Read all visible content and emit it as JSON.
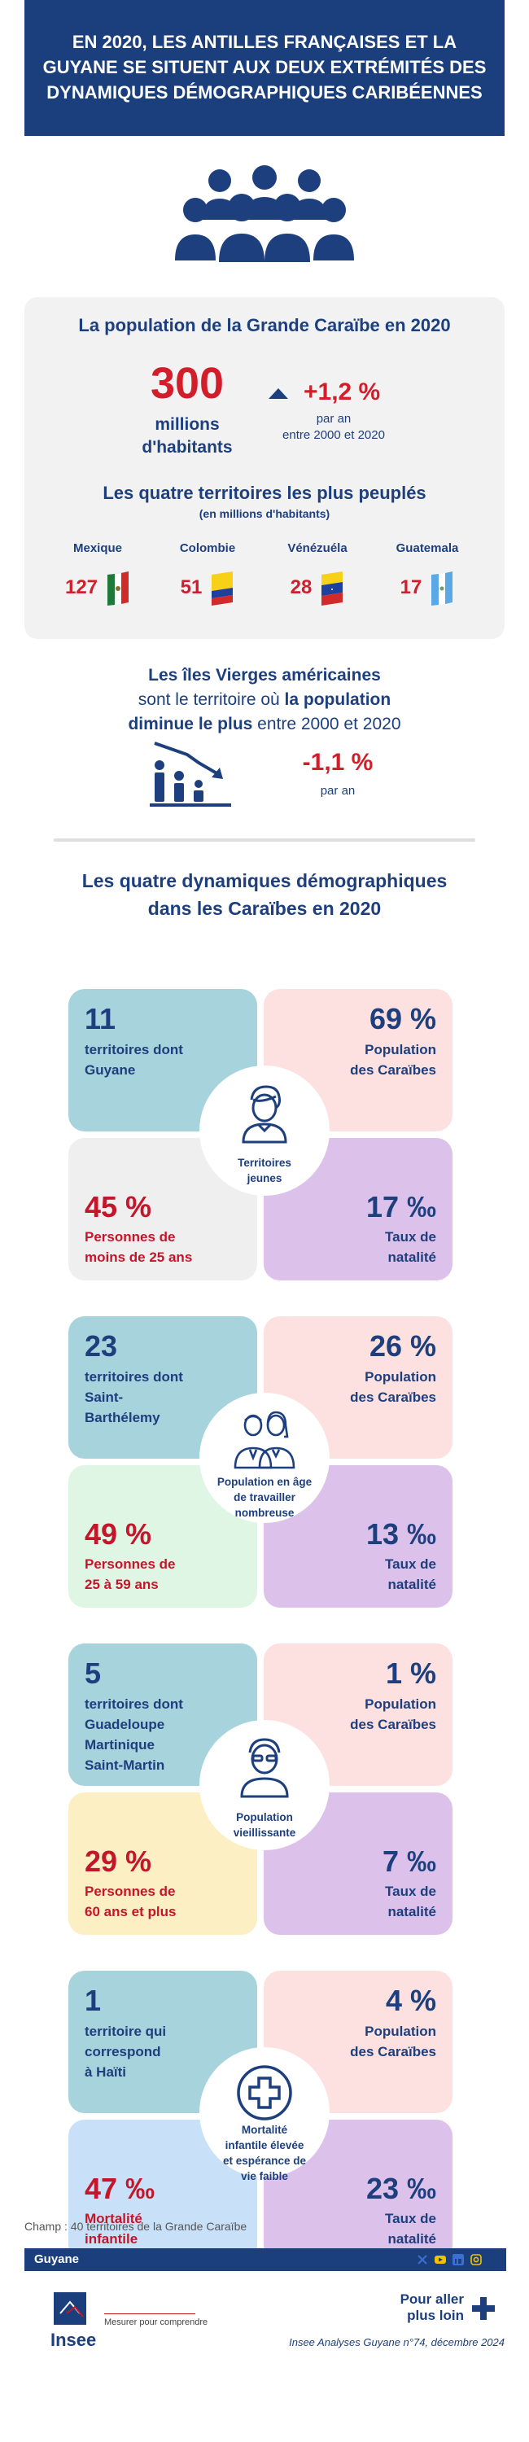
{
  "header": {
    "line1": "EN 2020, LES ANTILLES FRANÇAISES ET LA",
    "line2": "GUYANE SE SITUENT AUX DEUX EXTRÉMITÉS DES",
    "line3": "DYNAMIQUES DÉMOGRAPHIQUES CARIBÉENNES"
  },
  "population": {
    "title": "La population de la Grande Caraïbe en 2020",
    "value": "300",
    "unit_line1": "millions",
    "unit_line2": "d'habitants",
    "growth": "+1,2 %",
    "growth_line1": "par an",
    "growth_line2": "entre 2000 et 2020",
    "top4_title": "Les quatre territoires les plus peuplés",
    "top4_sub": "(en millions d'habitants)",
    "countries": [
      {
        "name": "Mexique",
        "value": "127",
        "flag": "mexico-flag"
      },
      {
        "name": "Colombie",
        "value": "51",
        "flag": "colombia-flag"
      },
      {
        "name": "Vénézuéla",
        "value": "28",
        "flag": "venezuela-flag"
      },
      {
        "name": "Guatemala",
        "value": "17",
        "flag": "guatemala-flag"
      }
    ]
  },
  "virgin_islands": {
    "line1": "Les îles Vierges américaines",
    "line2_pre": "sont le territoire où ",
    "line2_bold": "la population",
    "line3_bold": "diminue le plus",
    "line3_post": " entre 2000 et 2020",
    "value": "-1,1 %",
    "sub": "par an"
  },
  "dynamics_title_line1": "Les quatre dynamiques démographiques",
  "dynamics_title_line2": "dans les Caraïbes en 2020",
  "blocks": [
    {
      "center": [
        "Territoires",
        "jeunes"
      ],
      "center_icon": "young-person-icon",
      "tl_num": "11",
      "tl_label": [
        "territoires dont",
        "Guyane"
      ],
      "tr_num": "69 %",
      "tr_label": [
        "Population",
        "des Caraïbes"
      ],
      "bl_num": "45 %",
      "bl_label": [
        "Personnes de",
        "moins de 25 ans"
      ],
      "br_num": "17 ‰",
      "br_label": [
        "Taux de",
        "natalité"
      ],
      "colors": {
        "tl": "#a6d3dc",
        "tr": "#fde1e0",
        "bl": "#efefef",
        "br": "#dcc1ea"
      }
    },
    {
      "center": [
        "Population en âge",
        "de travailler",
        "nombreuse"
      ],
      "center_icon": "working-adults-icon",
      "tl_num": "23",
      "tl_label": [
        "territoires dont",
        "Saint-",
        "Barthélemy"
      ],
      "tr_num": "26 %",
      "tr_label": [
        "Population",
        "des Caraïbes"
      ],
      "bl_num": "49 %",
      "bl_label": [
        "Personnes de",
        "25 à 59 ans"
      ],
      "br_num": "13 ‰",
      "br_label": [
        "Taux de",
        "natalité"
      ],
      "colors": {
        "tl": "#a6d3dc",
        "tr": "#fde1e0",
        "bl": "#dff6e5",
        "br": "#dcc1ea"
      }
    },
    {
      "center": [
        "Population",
        "vieillissante"
      ],
      "center_icon": "elderly-person-icon",
      "tl_num": "5",
      "tl_label": [
        "territoires dont",
        "Guadeloupe",
        "Martinique",
        "Saint-Martin"
      ],
      "tr_num": "1 %",
      "tr_label": [
        "Population",
        "des Caraïbes"
      ],
      "bl_num": "29 %",
      "bl_label": [
        "Personnes de",
        "60 ans et plus"
      ],
      "br_num": "7 ‰",
      "br_label": [
        "Taux de",
        "natalité"
      ],
      "colors": {
        "tl": "#a6d3dc",
        "tr": "#fde1e0",
        "bl": "#fcefc4",
        "br": "#dcc1ea"
      }
    },
    {
      "center": [
        "Mortalité",
        "infantile élevée",
        "et espérance de",
        "vie faible"
      ],
      "center_icon": "medical-cross-icon",
      "tl_num": "1",
      "tl_label": [
        "territoire qui",
        "correspond",
        "à Haïti"
      ],
      "tr_num": "4 %",
      "tr_label": [
        "Population",
        "des Caraïbes"
      ],
      "bl_num": "47 ‰",
      "bl_label": [
        "Mortalité",
        "infantile"
      ],
      "br_num": "23 ‰",
      "br_label": [
        "Taux de",
        "natalité"
      ],
      "colors": {
        "tl": "#a6d3dc",
        "tr": "#fde1e0",
        "bl": "#c9e1f8",
        "br": "#dcc1ea"
      }
    }
  ],
  "footer": {
    "champ": "Champ : 40 territoires de la Grande Caraïbe",
    "region": "Guyane",
    "insee": "Insee",
    "tagline": "Mesurer pour comprendre",
    "more_line1": "Pour aller",
    "more_line2": "plus loin",
    "publication": "Insee Analyses Guyane n°74, décembre 2024"
  }
}
